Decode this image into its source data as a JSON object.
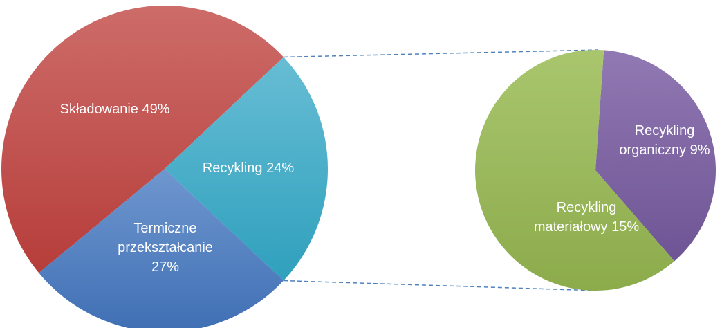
{
  "chart_data": [
    {
      "type": "pie",
      "title": "",
      "slices": [
        {
          "name": "Składowanie",
          "value": 49,
          "label_lines": [
            "Składowanie 49%"
          ],
          "color": "#c0504d"
        },
        {
          "name": "Recykling",
          "value": 24,
          "label_lines": [
            "Recykling 24%"
          ],
          "color": "#4bacc6"
        },
        {
          "name": "Termiczne przekształcanie",
          "value": 27,
          "label_lines": [
            "Termiczne",
            "przekształcanie",
            "27%"
          ],
          "color": "#4f81bd"
        }
      ]
    },
    {
      "type": "pie",
      "title": "",
      "breakdown_of": "Recykling",
      "slices": [
        {
          "name": "Recykling organiczny",
          "value": 9,
          "label_lines": [
            "Recykling",
            "organiczny 9%"
          ],
          "color": "#8064a2"
        },
        {
          "name": "Recykling materiałowy",
          "value": 15,
          "label_lines": [
            "Recykling",
            "materiałowy 15%"
          ],
          "color": "#9bbb59"
        }
      ]
    }
  ],
  "connector": {
    "style": "dashed",
    "color": "#4f81bd"
  }
}
